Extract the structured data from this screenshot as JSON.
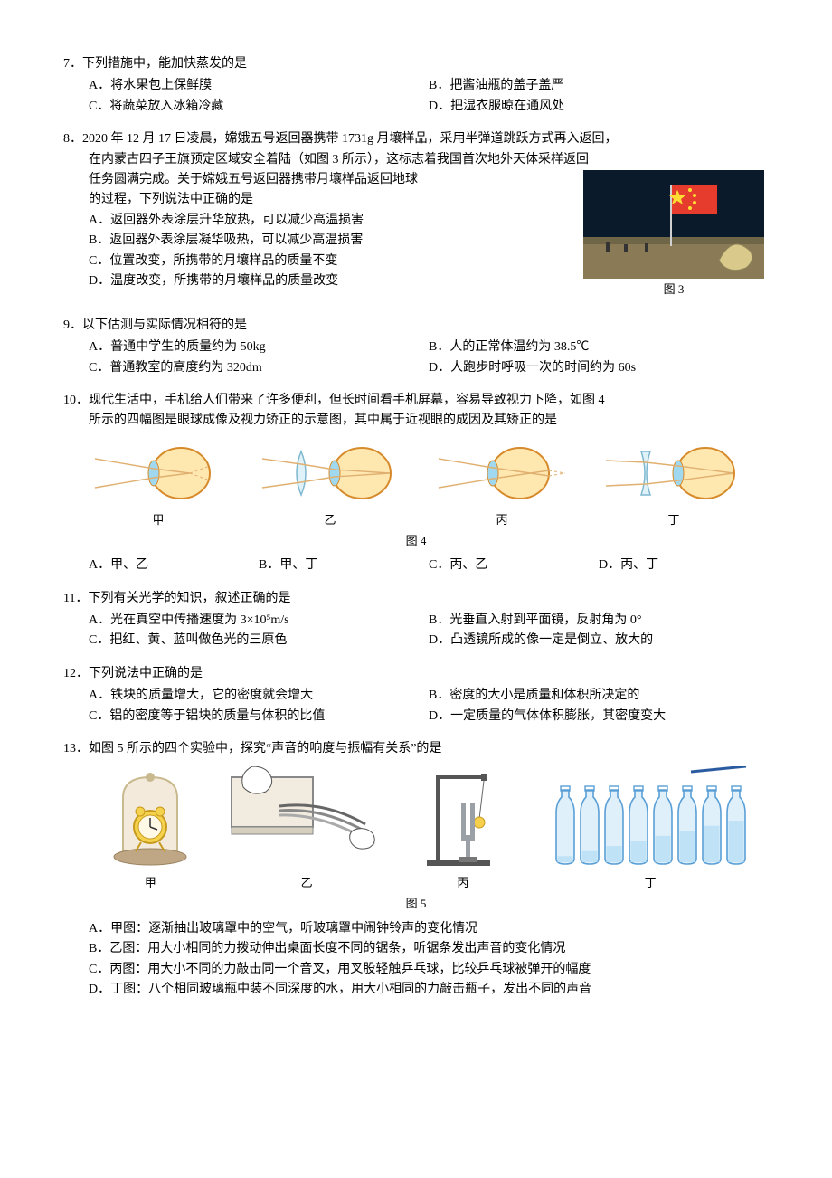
{
  "q7": {
    "num": "7．",
    "stem": "下列措施中，能加快蒸发的是",
    "opts": {
      "A": "A．将水果包上保鲜膜",
      "B": "B．把酱油瓶的盖子盖严",
      "C": "C．将蔬菜放入冰箱冷藏",
      "D": "D．把湿衣服晾在通风处"
    }
  },
  "q8": {
    "num": "8．",
    "stem_line1": "2020 年 12 月 17 日凌晨，嫦娥五号返回器携带 1731g 月壤样品，采用半弹道跳跃方式再入返回，",
    "stem_line2": "在内蒙古四子王旗预定区域安全着陆（如图 3 所示），这标志着我国首次地外天体采样返回",
    "stem_line3": "任务圆满完成。关于嫦娥五号返回器携带月壤样品返回地球",
    "stem_line4": "的过程，下列说法中正确的是",
    "opts": {
      "A": "A．返回器外表涂层升华放热，可以减少高温损害",
      "B": "B．返回器外表涂层凝华吸热，可以减少高温损害",
      "C": "C．位置改变，所携带的月壤样品的质量不变",
      "D": "D．温度改变，所携带的月壤样品的质量改变"
    },
    "figcap": "图 3",
    "photo": {
      "sky": "#0a1a2a",
      "ground": "#8a7a55",
      "flag_red": "#e63c2e",
      "flag_yellow": "#ffdd33",
      "capsule": "#d9c98a"
    }
  },
  "q9": {
    "num": "9．",
    "stem": "以下估测与实际情况相符的是",
    "opts": {
      "A": "A．普通中学生的质量约为 50kg",
      "B": "B．人的正常体温约为 38.5℃",
      "C": "C．普通教室的高度约为 320dm",
      "D": "D．人跑步时呼吸一次的时间约为 60s"
    }
  },
  "q10": {
    "num": "10．",
    "stem_line1": "现代生活中，手机给人们带来了许多便利，但长时间看手机屏幕，容易导致视力下降，如图 4",
    "stem_line2": "所示的四幅图是眼球成像及视力矫正的示意图，其中属于近视眼的成因及其矫正的是",
    "labels": {
      "a": "甲",
      "b": "乙",
      "c": "丙",
      "d": "丁"
    },
    "figcap": "图 4",
    "opts": {
      "A": "A．甲、乙",
      "B": "B．甲、丁",
      "C": "C．丙、乙",
      "D": "D．丙、丁"
    },
    "eye": {
      "eye_fill": "#ffe7b0",
      "eye_stroke": "#d68a2a",
      "cornea": "#9fd8ef",
      "ray": "#e0b070",
      "ray_dash": "#e0b070",
      "lens_stroke": "#7fb8cf",
      "lens_fill": "#dff2fa"
    }
  },
  "q11": {
    "num": "11．",
    "stem": "下列有关光学的知识，叙述正确的是",
    "opts": {
      "A": "A．光在真空中传播速度为 3×10⁵m/s",
      "B": "B．光垂直入射到平面镜，反射角为 0°",
      "C": "C．把红、黄、蓝叫做色光的三原色",
      "D": "D．凸透镜所成的像一定是倒立、放大的"
    }
  },
  "q12": {
    "num": "12．",
    "stem": "下列说法中正确的是",
    "opts": {
      "A": "A．铁块的质量增大，它的密度就会增大",
      "B": "B．密度的大小是质量和体积所决定的",
      "C": "C．铝的密度等于铝块的质量与体积的比值",
      "D": "D．一定质量的气体体积膨胀，其密度变大"
    }
  },
  "q13": {
    "num": "13．",
    "stem": "如图 5 所示的四个实验中，探究“声音的响度与振幅有关系”的是",
    "labels": {
      "a": "甲",
      "b": "乙",
      "c": "丙",
      "d": "丁"
    },
    "figcap": "图 5",
    "opts": {
      "A": "A．甲图：逐渐抽出玻璃罩中的空气，听玻璃罩中闹钟铃声的变化情况",
      "B": "B．乙图：用大小相同的力拨动伸出桌面长度不同的锯条，听锯条发出声音的变化情况",
      "C": "C．丙图：用大小不同的力敲击同一个音叉，用叉股轻触乒乓球，比较乒乓球被弹开的幅度",
      "D": "D．丁图：八个相同玻璃瓶中装不同深度的水，用大小相同的力敲击瓶子，发出不同的声音"
    },
    "fig": {
      "jar_fill": "#f3eadb",
      "jar_stroke": "#c9b98f",
      "clock_body": "#f4d24e",
      "clock_face": "#fff9e6",
      "wood": "#bfa786",
      "table_fill": "#f2ece0",
      "table_stroke": "#888",
      "stand": "#555",
      "fork": "#9aa0a6",
      "ball": "#f6d04d",
      "bottle_stroke": "#5a9fd6",
      "bottle_fill": "#dff0fb",
      "water": "#bfe2f6",
      "stick": "#2a5aa0"
    }
  }
}
